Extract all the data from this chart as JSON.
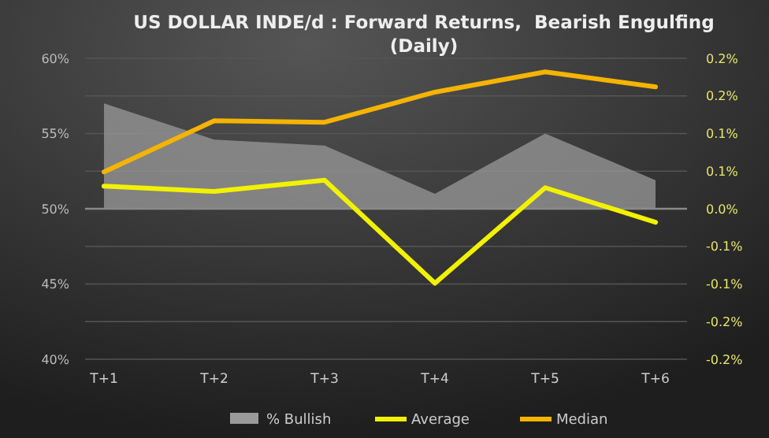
{
  "chart_data": {
    "type": "line",
    "title": "US DOLLAR INDE/d : Forward Returns,  Bearish Engulfing (Daily)",
    "categories": [
      "T+1",
      "T+2",
      "T+3",
      "T+4",
      "T+5",
      "T+6"
    ],
    "series": [
      {
        "name": "% Bullish",
        "type": "area",
        "color": "#9a9a9a",
        "values": [
          57.0,
          54.6,
          54.2,
          51.0,
          55.0,
          51.9
        ]
      },
      {
        "name": "Average",
        "axis": "y2",
        "color": "#f2f200",
        "values": [
          0.03,
          0.023,
          0.038,
          -0.099,
          0.028,
          -0.018
        ]
      },
      {
        "name": "Median",
        "axis": "y2",
        "color": "#f5b400",
        "values": [
          0.049,
          0.117,
          0.115,
          0.155,
          0.182,
          0.162
        ]
      }
    ],
    "ylim": [
      40,
      60
    ],
    "yticks": [
      {
        "value": 40,
        "label": "40%"
      },
      {
        "value": 42.5,
        "label": null
      },
      {
        "value": 45,
        "label": "45%"
      },
      {
        "value": 47.5,
        "label": null
      },
      {
        "value": 50,
        "label": "50%"
      },
      {
        "value": 52.5,
        "label": null
      },
      {
        "value": 55,
        "label": "55%"
      },
      {
        "value": 57.5,
        "label": null
      },
      {
        "value": 60,
        "label": "60%"
      }
    ],
    "y2lim": [
      -0.2,
      0.2
    ],
    "y2ticks": [
      {
        "value": -0.2,
        "label": "-0.2%"
      },
      {
        "value": -0.15,
        "label": "-0.2%"
      },
      {
        "value": -0.1,
        "label": "-0.1%"
      },
      {
        "value": -0.05,
        "label": "-0.1%"
      },
      {
        "value": 0,
        "label": "0.0%"
      },
      {
        "value": 0.05,
        "label": "0.1%"
      },
      {
        "value": 0.1,
        "label": "0.1%"
      },
      {
        "value": 0.15,
        "label": "0.2%"
      },
      {
        "value": 0.2,
        "label": "0.2%"
      }
    ],
    "ref_lines": [
      {
        "axis": "y2",
        "value": 0,
        "color": "#8a8a8a"
      }
    ],
    "grid": "y",
    "legend": "bottom",
    "line_style": "solid"
  }
}
